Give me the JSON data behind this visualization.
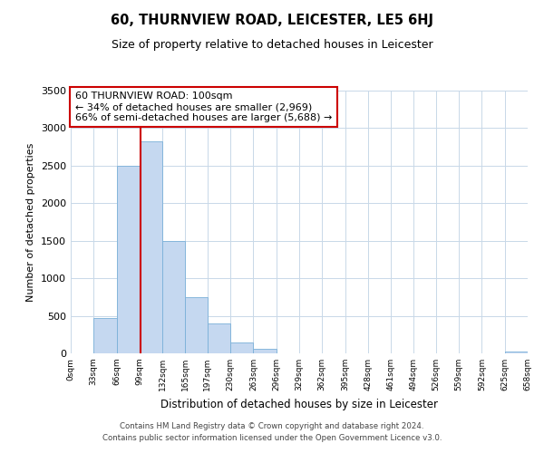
{
  "title": "60, THURNVIEW ROAD, LEICESTER, LE5 6HJ",
  "subtitle": "Size of property relative to detached houses in Leicester",
  "xlabel": "Distribution of detached houses by size in Leicester",
  "ylabel": "Number of detached properties",
  "bar_color": "#c5d8f0",
  "bar_edge_color": "#7ab0d8",
  "background_color": "#ffffff",
  "grid_color": "#c8d8e8",
  "annotation_line_color": "#cc0000",
  "annotation_box_color": "#cc0000",
  "bin_edges": [
    0,
    33,
    66,
    99,
    132,
    165,
    197,
    230,
    263,
    296,
    329,
    362,
    395,
    428,
    461,
    494,
    526,
    559,
    592,
    625,
    658
  ],
  "bin_labels": [
    "0sqm",
    "33sqm",
    "66sqm",
    "99sqm",
    "132sqm",
    "165sqm",
    "197sqm",
    "230sqm",
    "263sqm",
    "296sqm",
    "329sqm",
    "362sqm",
    "395sqm",
    "428sqm",
    "461sqm",
    "494sqm",
    "526sqm",
    "559sqm",
    "592sqm",
    "625sqm",
    "658sqm"
  ],
  "bar_heights": [
    5,
    470,
    2500,
    2820,
    1500,
    750,
    400,
    150,
    60,
    5,
    5,
    5,
    0,
    0,
    0,
    0,
    0,
    0,
    0,
    30
  ],
  "property_line_x": 100,
  "annotation_title": "60 THURNVIEW ROAD: 100sqm",
  "annotation_line1": "← 34% of detached houses are smaller (2,969)",
  "annotation_line2": "66% of semi-detached houses are larger (5,688) →",
  "ylim": [
    0,
    3500
  ],
  "yticks": [
    0,
    500,
    1000,
    1500,
    2000,
    2500,
    3000,
    3500
  ],
  "footer_line1": "Contains HM Land Registry data © Crown copyright and database right 2024.",
  "footer_line2": "Contains public sector information licensed under the Open Government Licence v3.0."
}
